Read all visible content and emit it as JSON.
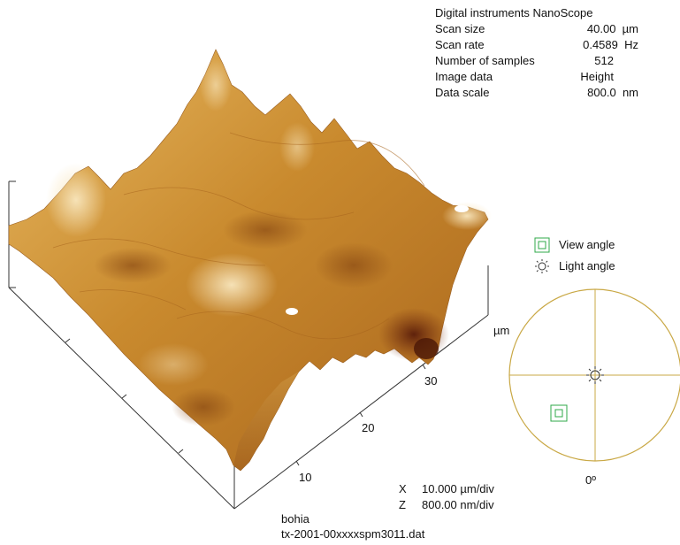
{
  "info": {
    "header": "Digital instruments NanoScope",
    "rows": [
      {
        "label": "Scan size",
        "value": "40.00",
        "unit": "µm"
      },
      {
        "label": "Scan rate",
        "value": "0.4589",
        "unit": "Hz"
      },
      {
        "label": "Number of samples",
        "value": "512",
        "unit": ""
      },
      {
        "label": "Image data",
        "value": "Height",
        "unit": ""
      },
      {
        "label": "Data scale",
        "value": "800.0",
        "unit": "nm"
      }
    ]
  },
  "legend": {
    "view_angle": "View angle",
    "light_angle": "Light angle"
  },
  "plot": {
    "unit_label": "µm",
    "ticks": [
      "10",
      "20",
      "30"
    ]
  },
  "scale": {
    "x_key": "X",
    "x_val": "10.000 µm/div",
    "z_key": "Z",
    "z_val": "800.00 nm/div"
  },
  "footer": {
    "line1": "bohia",
    "line2": "tx-2001-00xxxxspm3011.dat"
  },
  "dial": {
    "angle_label": "0º"
  },
  "colors": {
    "surface_light": "#f3dcaa",
    "surface_mid": "#c98a2e",
    "surface_dark": "#5a1d0a",
    "dial_line": "#c9a845",
    "view_symbol": "#2fa84a",
    "axis": "#333333"
  }
}
